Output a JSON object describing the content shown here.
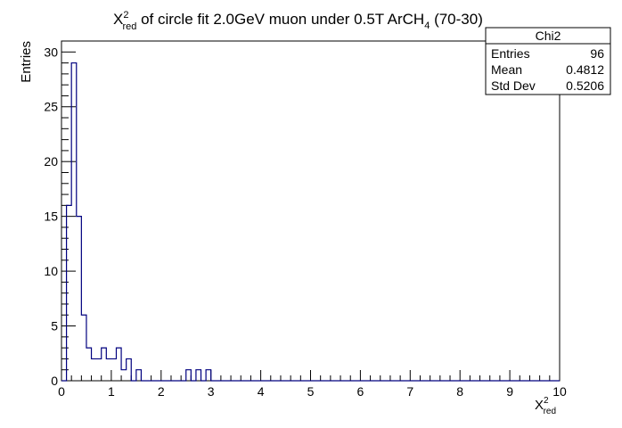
{
  "chart_data": {
    "type": "bar",
    "title_main": "X",
    "title_sup": "2",
    "title_sub": "red",
    "title_rest": " of circle fit 2.0GeV muon under 0.5T ArCH",
    "title_sub2": "4",
    "title_tail": " (70-30)",
    "xlabel_main": "X",
    "xlabel_sup": "2",
    "xlabel_sub": "red",
    "ylabel": "Entries",
    "xlim": [
      0,
      10
    ],
    "ylim": [
      0,
      31
    ],
    "x_ticks": [
      0,
      1,
      2,
      3,
      4,
      5,
      6,
      7,
      8,
      9,
      10
    ],
    "y_ticks": [
      0,
      5,
      10,
      15,
      20,
      25,
      30
    ],
    "bin_width": 0.1,
    "bins": [
      {
        "x": 0.1,
        "value": 16
      },
      {
        "x": 0.2,
        "value": 29
      },
      {
        "x": 0.3,
        "value": 15
      },
      {
        "x": 0.4,
        "value": 6
      },
      {
        "x": 0.5,
        "value": 3
      },
      {
        "x": 0.6,
        "value": 2
      },
      {
        "x": 0.7,
        "value": 2
      },
      {
        "x": 0.8,
        "value": 3
      },
      {
        "x": 0.9,
        "value": 2
      },
      {
        "x": 1.0,
        "value": 2
      },
      {
        "x": 1.1,
        "value": 3
      },
      {
        "x": 1.2,
        "value": 1
      },
      {
        "x": 1.3,
        "value": 2
      },
      {
        "x": 1.5,
        "value": 1
      },
      {
        "x": 2.5,
        "value": 1
      },
      {
        "x": 2.7,
        "value": 1
      },
      {
        "x": 2.9,
        "value": 1
      }
    ],
    "line_color": "#00007f",
    "legend": "top-right"
  },
  "stats": {
    "title": "Chi2",
    "rows": [
      {
        "label": "Entries",
        "value": "96"
      },
      {
        "label": "Mean",
        "value": "0.4812"
      },
      {
        "label": "Std Dev",
        "value": "0.5206"
      }
    ]
  }
}
